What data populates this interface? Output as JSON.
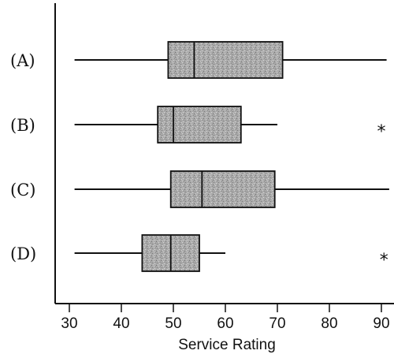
{
  "chart_data": {
    "type": "boxplot",
    "title": "",
    "xlabel": "Service Rating",
    "ylabel": "",
    "xlim": [
      27,
      93
    ],
    "xticks": [
      30,
      40,
      50,
      60,
      70,
      80,
      90
    ],
    "grid": false,
    "box_color": "#a9a9a9",
    "series": [
      {
        "name": "(A)",
        "min": 31,
        "q1": 49,
        "median": 54,
        "q3": 71,
        "max": 91,
        "outliers": []
      },
      {
        "name": "(B)",
        "min": 31,
        "q1": 47,
        "median": 50,
        "q3": 63,
        "max": 70,
        "outliers": [
          90
        ],
        "outlier_marker": "*"
      },
      {
        "name": "(C)",
        "min": 31,
        "q1": 49.5,
        "median": 55.5,
        "q3": 69.5,
        "max": 91.5,
        "outliers": []
      },
      {
        "name": "(D)",
        "min": 31,
        "q1": 44,
        "median": 49.5,
        "q3": 55,
        "max": 60,
        "outliers": [
          90.5
        ],
        "outlier_marker": "*"
      }
    ]
  }
}
